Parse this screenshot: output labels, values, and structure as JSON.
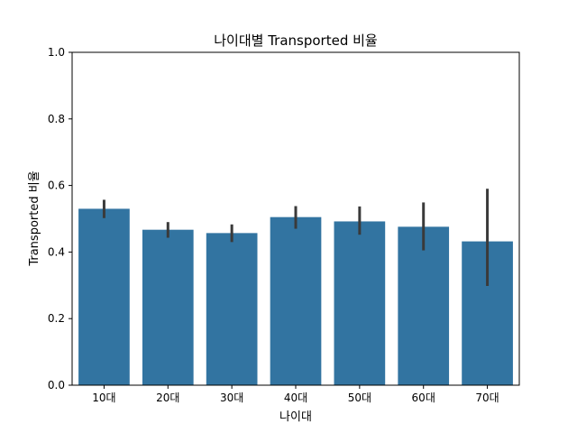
{
  "chart_data": {
    "type": "bar",
    "title": "나이대별 Transported 비율",
    "xlabel": "나이대",
    "ylabel": "Transported 비율",
    "ylim": [
      0,
      1.0
    ],
    "yticks": [
      "0.0",
      "0.2",
      "0.4",
      "0.6",
      "0.8",
      "1.0"
    ],
    "categories": [
      "10대",
      "20대",
      "30대",
      "40대",
      "50대",
      "60대",
      "70대"
    ],
    "values": [
      0.53,
      0.467,
      0.457,
      0.505,
      0.492,
      0.476,
      0.432
    ],
    "error_low": [
      0.502,
      0.443,
      0.43,
      0.47,
      0.452,
      0.405,
      0.298
    ],
    "error_high": [
      0.557,
      0.49,
      0.483,
      0.538,
      0.537,
      0.549,
      0.59
    ],
    "bar_color": "#3274a1",
    "errorbar_color": "#3a3a3a",
    "grid": false,
    "legend": "none"
  }
}
